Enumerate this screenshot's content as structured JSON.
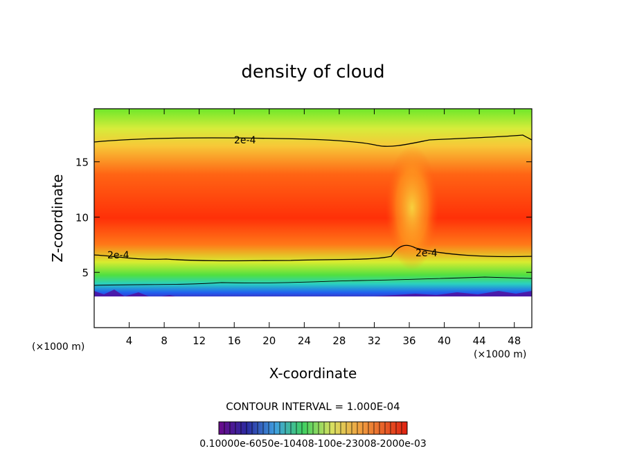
{
  "chart_data": {
    "type": "heatmap",
    "title": "density of cloud",
    "xlabel": "X-coordinate",
    "ylabel": "Z-coordinate",
    "x_unit_left": "(×1000 m)",
    "x_unit_right": "(×1000 m)",
    "xlim": [
      0,
      50
    ],
    "ylim": [
      0,
      19.8
    ],
    "x_ticks": [
      4,
      8,
      12,
      16,
      20,
      24,
      28,
      32,
      36,
      40,
      44,
      48
    ],
    "y_ticks": [
      5,
      10,
      15
    ],
    "contour_interval_text": "CONTOUR INTERVAL = 1.000E-04",
    "contour_labels": [
      "2e-4",
      "2e-4",
      "2e-4"
    ],
    "colorbar_label_text": "0.10000e-6050e-10408-100e-23008-2000e-03",
    "colors": {
      "low": "#5a0a8c",
      "mid_low": "#2a6cf0",
      "mid": "#46e03a",
      "mid_high": "#f5e050",
      "high": "#ff2d0a"
    }
  }
}
